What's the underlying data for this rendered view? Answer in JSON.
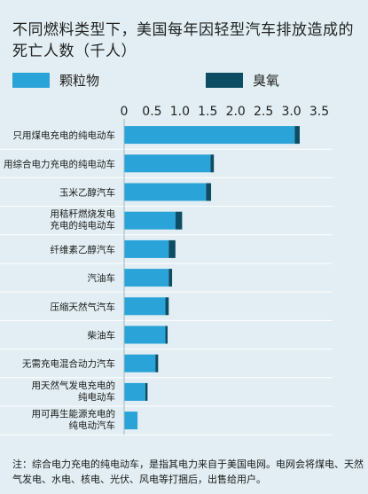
{
  "chart_data": {
    "type": "bar",
    "stacked": true,
    "orientation": "horizontal",
    "title": "不同燃料类型下，美国每年因轻型汽车排放造成的死亡人数（千人）",
    "xlim": [
      0,
      3.5
    ],
    "xticks": [
      "0",
      "0.5",
      "1.0",
      "1.5",
      "2.0",
      "2.5",
      "3.0",
      "3.5"
    ],
    "legend": {
      "position": "top"
    },
    "categories": [
      [
        "只用煤电充电的纯电动车"
      ],
      [
        "用综合电力充电的纯电动车"
      ],
      [
        "玉米乙醇汽车"
      ],
      [
        "用秸秆燃烧发电",
        "充电的纯电动车"
      ],
      [
        "纤维素乙醇汽车"
      ],
      [
        "汽油车"
      ],
      [
        "压缩天然气汽车"
      ],
      [
        "柴油车"
      ],
      [
        "无需充电混合动力汽车"
      ],
      [
        "用天然气发电充电的",
        "纯电动车"
      ],
      [
        "用可再生能源充电的",
        "纯电动汽车"
      ]
    ],
    "series": [
      {
        "name": "颗粒物",
        "color": "#2aa3d8",
        "values": [
          3.06,
          1.55,
          1.47,
          0.92,
          0.8,
          0.8,
          0.74,
          0.74,
          0.56,
          0.38,
          0.24
        ]
      },
      {
        "name": "臭氧",
        "color": "#0d4d63",
        "values": [
          0.09,
          0.06,
          0.09,
          0.12,
          0.12,
          0.06,
          0.06,
          0.04,
          0.05,
          0.04,
          0.0
        ]
      }
    ]
  },
  "footnote": "注：综合电力充电的纯电动车，是指其电力来自于美国电网。电网会将煤电、天然气发电、水电、核电、光伏、风电等打捆后，出售给用户。"
}
